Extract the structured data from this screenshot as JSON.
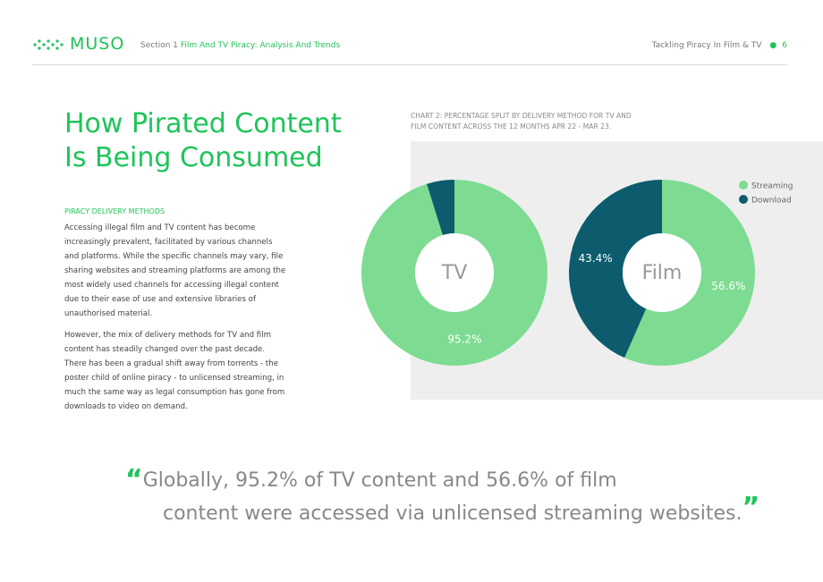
{
  "header": {
    "logo": "MUSO",
    "section": "Section 1",
    "section_title": "Film And TV Piracy: Analysis And Trends",
    "doc_title": "Tackling Piracy In Film & TV",
    "page": "6"
  },
  "heading": {
    "line1": "How Pirated Content",
    "line2": "Is Being Consumed"
  },
  "subheading": "PIRACY DELIVERY METHODS",
  "paragraphs": [
    "Accessing illegal film and TV content has become increasingly prevalent, facilitated by various channels and platforms. While the specific channels may vary, file sharing websites and streaming platforms are among the most widely used channels for accessing illegal content due to their ease of use and extensive libraries of unauthorised material.",
    "However, the mix of delivery methods for TV and film content has steadily changed over the past decade. There has been a gradual shift away from torrents - the poster child of online piracy - to unlicensed streaming, in much the same way as legal consumption has gone from downloads to video on demand."
  ],
  "chart_caption": {
    "line1": "CHART 2: PERCENTAGE SPLIT BY DELIVERY METHOD FOR TV AND",
    "line2": "FILM CONTENT ACROSS THE 12 MONTHS APR 22 - MAR 23."
  },
  "chart_data": [
    {
      "type": "pie",
      "title": "TV",
      "categories": [
        "Streaming",
        "Download"
      ],
      "values": [
        95.2,
        4.8
      ],
      "value_labels": [
        "95.2%",
        null
      ],
      "colors": [
        "#7ddc91",
        "#0c5c6d"
      ],
      "legend": "top-right"
    },
    {
      "type": "pie",
      "title": "Film",
      "categories": [
        "Streaming",
        "Download"
      ],
      "values": [
        56.6,
        43.4
      ],
      "value_labels": [
        "56.6%",
        "43.4%"
      ],
      "colors": [
        "#7ddc91",
        "#0c5c6d"
      ]
    }
  ],
  "quote": {
    "open": "“",
    "line1": "Globally, 95.2% of TV content and 56.6% of film",
    "line2": "content were accessed via unlicensed streaming websites.",
    "close": "”"
  }
}
